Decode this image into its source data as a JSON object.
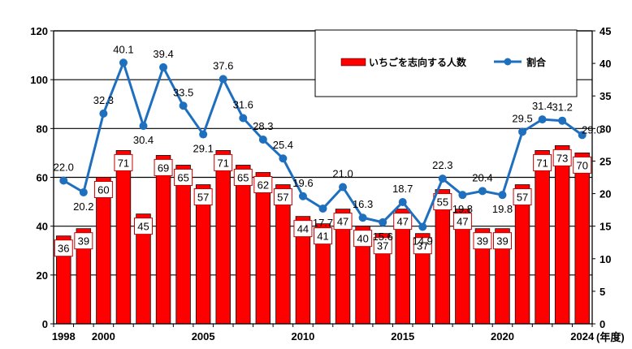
{
  "chart_data": {
    "type": "bar+line",
    "categories": [
      "1998",
      "1999",
      "2000",
      "2001",
      "2002",
      "2003",
      "2004",
      "2005",
      "2006",
      "2007",
      "2008",
      "2009",
      "2010",
      "2011",
      "2012",
      "2013",
      "2014",
      "2015",
      "2016",
      "2017",
      "2018",
      "2019",
      "2020",
      "2021",
      "2022",
      "2023",
      "2024"
    ],
    "x_tick_labels": [
      "1998",
      "2000",
      "2005",
      "2010",
      "2015",
      "2020",
      "2024"
    ],
    "x_unit": "(年度)",
    "series": [
      {
        "name": "いちごを志向する人数",
        "type": "bar",
        "axis": "left",
        "color": "#ff0000",
        "values": [
          36,
          39,
          60,
          71,
          45,
          69,
          65,
          57,
          71,
          65,
          62,
          57,
          44,
          41,
          47,
          40,
          37,
          47,
          37,
          55,
          47,
          39,
          39,
          57,
          71,
          73,
          70
        ]
      },
      {
        "name": "割合",
        "type": "line",
        "axis": "right",
        "color": "#1f6fbf",
        "values": [
          22.0,
          20.2,
          32.3,
          40.1,
          30.4,
          39.4,
          33.5,
          29.1,
          37.6,
          31.6,
          28.3,
          25.4,
          19.6,
          17.7,
          21.0,
          16.3,
          15.6,
          18.7,
          14.9,
          22.3,
          19.8,
          20.4,
          19.8,
          29.5,
          31.4,
          31.2,
          29.0
        ]
      }
    ],
    "y_left": {
      "min": 0,
      "max": 120,
      "ticks": [
        0,
        20,
        40,
        60,
        80,
        100,
        120
      ]
    },
    "y_right": {
      "min": 0,
      "max": 45,
      "ticks": [
        0,
        5,
        10,
        15,
        20,
        25,
        30,
        35,
        40,
        45
      ]
    },
    "legend_position": "top-right"
  }
}
